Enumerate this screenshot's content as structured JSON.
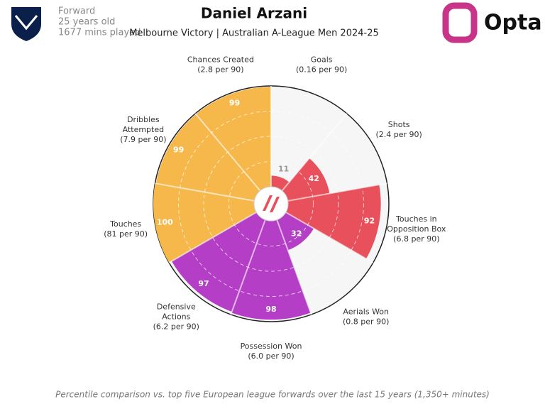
{
  "chart_data": {
    "type": "pizza",
    "title": "Daniel Arzani",
    "subtitle": "Melbourne Victory | Australian A-League Men 2024-25",
    "player_info": [
      "Forward",
      "25 years old",
      "1677 mins played"
    ],
    "brand": "Opta",
    "footnote": "Percentile comparison vs. top five European league forwards over the last 15 years (1,350+ minutes)",
    "categories": [
      [
        "Goals"
      ],
      [
        "Shots"
      ],
      [
        "Touches in",
        "Opposition Box"
      ],
      [
        "Aerials Won"
      ],
      [
        "Possession Won"
      ],
      [
        "Defensive",
        "Actions"
      ],
      [
        "Touches"
      ],
      [
        "Dribbles",
        "Attempted"
      ],
      [
        "Chances Created"
      ]
    ],
    "per90_labels": [
      "(0.16 per 90)",
      "(2.4 per 90)",
      "(6.8 per 90)",
      "(0.8 per 90)",
      "(6.0 per 90)",
      "(6.2 per 90)",
      "(81 per 90)",
      "(7.9 per 90)",
      "(2.8 per 90)"
    ],
    "values": [
      11,
      42,
      92,
      32,
      98,
      97,
      100,
      99,
      99
    ],
    "colors": [
      "#e8505b",
      "#e8505b",
      "#e8505b",
      "#b43fc6",
      "#b43fc6",
      "#b43fc6",
      "#f7b84b",
      "#f7b84b",
      "#f7b84b"
    ],
    "rlim": [
      0,
      100
    ],
    "rticks": [
      25,
      50,
      75
    ]
  }
}
